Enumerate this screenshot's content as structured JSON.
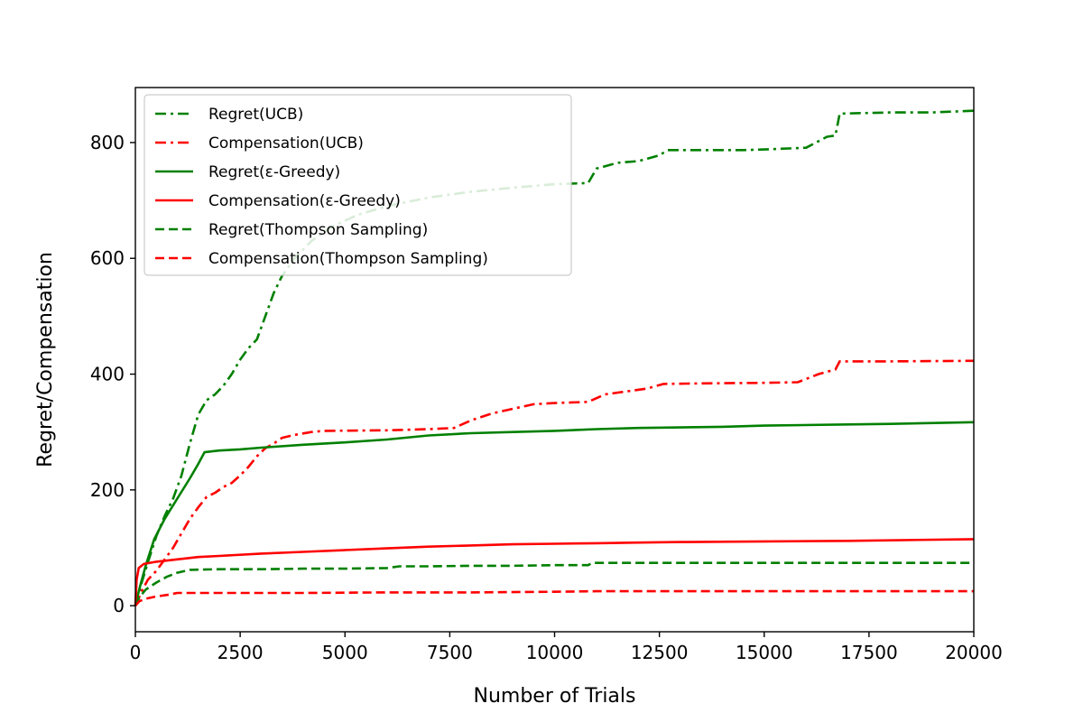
{
  "chart_data": {
    "type": "line",
    "xlabel": "Number of Trials",
    "ylabel": "Regret/Compensation",
    "xlim": [
      0,
      20000
    ],
    "ylim": [
      -45,
      895
    ],
    "x_ticks": [
      0,
      2500,
      5000,
      7500,
      10000,
      12500,
      15000,
      17500,
      20000
    ],
    "y_ticks": [
      0,
      200,
      400,
      600,
      800
    ],
    "grid": false,
    "legend_position": "top-left",
    "series": [
      {
        "name": "Regret(UCB)",
        "color": "#008000",
        "style": "dashdot",
        "points": [
          [
            0,
            0
          ],
          [
            150,
            40
          ],
          [
            300,
            75
          ],
          [
            500,
            120
          ],
          [
            700,
            155
          ],
          [
            900,
            185
          ],
          [
            1100,
            225
          ],
          [
            1300,
            280
          ],
          [
            1500,
            330
          ],
          [
            1700,
            355
          ],
          [
            1900,
            365
          ],
          [
            2100,
            380
          ],
          [
            2300,
            400
          ],
          [
            2500,
            425
          ],
          [
            2700,
            445
          ],
          [
            2900,
            460
          ],
          [
            3100,
            500
          ],
          [
            3300,
            540
          ],
          [
            3500,
            570
          ],
          [
            3800,
            600
          ],
          [
            4200,
            630
          ],
          [
            4700,
            655
          ],
          [
            5300,
            675
          ],
          [
            6000,
            690
          ],
          [
            7000,
            705
          ],
          [
            8000,
            715
          ],
          [
            9000,
            722
          ],
          [
            10000,
            728
          ],
          [
            10800,
            730
          ],
          [
            11000,
            755
          ],
          [
            11500,
            765
          ],
          [
            12000,
            768
          ],
          [
            12500,
            778
          ],
          [
            12700,
            787
          ],
          [
            13500,
            787
          ],
          [
            14500,
            787
          ],
          [
            15000,
            788
          ],
          [
            16000,
            791
          ],
          [
            16500,
            810
          ],
          [
            16700,
            812
          ],
          [
            16800,
            850
          ],
          [
            18000,
            852
          ],
          [
            19000,
            852
          ],
          [
            20000,
            855
          ]
        ]
      },
      {
        "name": "Compensation(UCB)",
        "color": "#ff0000",
        "style": "dashdot",
        "points": [
          [
            0,
            0
          ],
          [
            150,
            25
          ],
          [
            300,
            45
          ],
          [
            500,
            60
          ],
          [
            700,
            80
          ],
          [
            900,
            100
          ],
          [
            1100,
            125
          ],
          [
            1300,
            150
          ],
          [
            1500,
            170
          ],
          [
            1700,
            188
          ],
          [
            1900,
            195
          ],
          [
            2100,
            205
          ],
          [
            2300,
            212
          ],
          [
            2500,
            225
          ],
          [
            2700,
            240
          ],
          [
            2900,
            258
          ],
          [
            3100,
            272
          ],
          [
            3300,
            280
          ],
          [
            3500,
            290
          ],
          [
            3800,
            295
          ],
          [
            4200,
            300
          ],
          [
            4500,
            302
          ],
          [
            6000,
            303
          ],
          [
            7000,
            305
          ],
          [
            7600,
            307
          ],
          [
            8000,
            320
          ],
          [
            8500,
            332
          ],
          [
            9000,
            340
          ],
          [
            9500,
            348
          ],
          [
            10000,
            350
          ],
          [
            10800,
            352
          ],
          [
            11200,
            365
          ],
          [
            11700,
            370
          ],
          [
            12200,
            375
          ],
          [
            12600,
            383
          ],
          [
            13500,
            384
          ],
          [
            15000,
            385
          ],
          [
            15800,
            386
          ],
          [
            16300,
            400
          ],
          [
            16700,
            408
          ],
          [
            16800,
            422
          ],
          [
            18000,
            422
          ],
          [
            20000,
            423
          ]
        ]
      },
      {
        "name": "Regret(ε-Greedy)",
        "color": "#008000",
        "style": "solid",
        "points": [
          [
            0,
            0
          ],
          [
            100,
            30
          ],
          [
            250,
            70
          ],
          [
            450,
            115
          ],
          [
            700,
            150
          ],
          [
            1000,
            185
          ],
          [
            1300,
            220
          ],
          [
            1500,
            245
          ],
          [
            1650,
            265
          ],
          [
            2000,
            268
          ],
          [
            2500,
            270
          ],
          [
            3000,
            273
          ],
          [
            4000,
            278
          ],
          [
            5000,
            282
          ],
          [
            6000,
            287
          ],
          [
            7000,
            294
          ],
          [
            8000,
            298
          ],
          [
            9000,
            300
          ],
          [
            10000,
            302
          ],
          [
            11000,
            305
          ],
          [
            12000,
            307
          ],
          [
            13000,
            308
          ],
          [
            14000,
            309
          ],
          [
            15000,
            311
          ],
          [
            17000,
            313
          ],
          [
            18000,
            314
          ],
          [
            20000,
            317
          ]
        ]
      },
      {
        "name": "Compensation(ε-Greedy)",
        "color": "#ff0000",
        "style": "solid",
        "points": [
          [
            0,
            0
          ],
          [
            30,
            45
          ],
          [
            80,
            65
          ],
          [
            200,
            72
          ],
          [
            500,
            76
          ],
          [
            1000,
            80
          ],
          [
            1500,
            84
          ],
          [
            2000,
            86
          ],
          [
            3000,
            90
          ],
          [
            4000,
            93
          ],
          [
            5000,
            96
          ],
          [
            6000,
            99
          ],
          [
            7000,
            102
          ],
          [
            8000,
            104
          ],
          [
            9000,
            106
          ],
          [
            10000,
            107
          ],
          [
            11000,
            108
          ],
          [
            12000,
            109
          ],
          [
            13000,
            110
          ],
          [
            15000,
            111
          ],
          [
            17000,
            112
          ],
          [
            20000,
            115
          ]
        ]
      },
      {
        "name": "Regret(Thompson Sampling)",
        "color": "#008000",
        "style": "dashed",
        "points": [
          [
            0,
            0
          ],
          [
            100,
            15
          ],
          [
            250,
            28
          ],
          [
            500,
            40
          ],
          [
            750,
            50
          ],
          [
            1000,
            57
          ],
          [
            1300,
            62
          ],
          [
            2000,
            63
          ],
          [
            3000,
            63
          ],
          [
            4000,
            64
          ],
          [
            5000,
            64
          ],
          [
            6000,
            65
          ],
          [
            6300,
            68
          ],
          [
            7000,
            68
          ],
          [
            8000,
            69
          ],
          [
            9000,
            69
          ],
          [
            10000,
            70
          ],
          [
            10800,
            70
          ],
          [
            10900,
            74
          ],
          [
            12000,
            74
          ],
          [
            14000,
            74
          ],
          [
            16000,
            74
          ],
          [
            18000,
            74
          ],
          [
            20000,
            74
          ]
        ]
      },
      {
        "name": "Compensation(Thompson Sampling)",
        "color": "#ff0000",
        "style": "dashed",
        "points": [
          [
            0,
            0
          ],
          [
            100,
            8
          ],
          [
            250,
            12
          ],
          [
            500,
            16
          ],
          [
            800,
            19
          ],
          [
            1000,
            22
          ],
          [
            2000,
            22
          ],
          [
            4000,
            22
          ],
          [
            6000,
            23
          ],
          [
            8000,
            23
          ],
          [
            10000,
            24
          ],
          [
            11000,
            25
          ],
          [
            14000,
            25
          ],
          [
            17000,
            25
          ],
          [
            20000,
            25
          ]
        ]
      }
    ]
  }
}
